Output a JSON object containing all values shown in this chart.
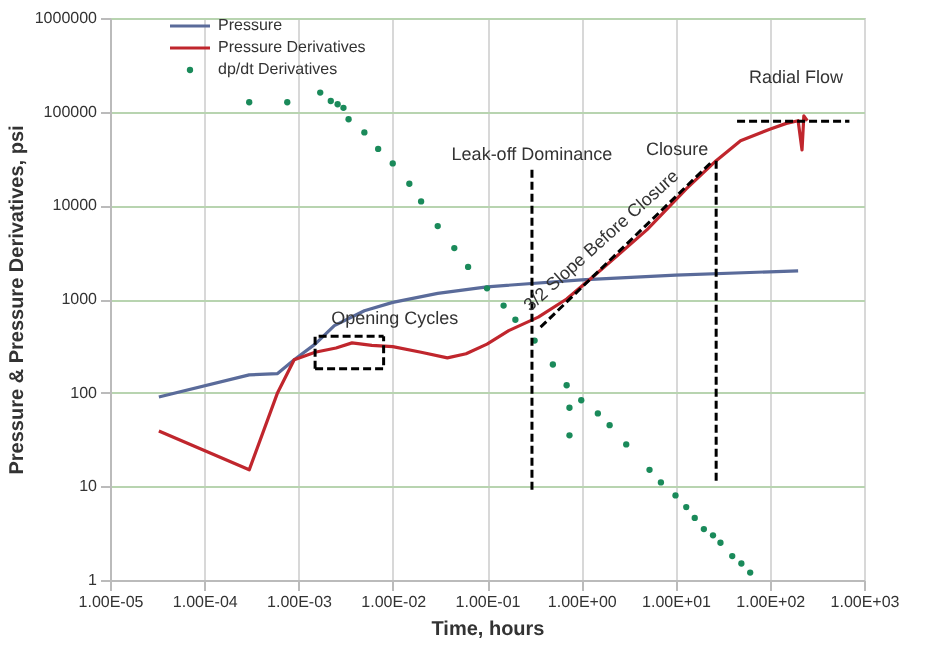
{
  "chart_data": {
    "type": "line",
    "xlabel": "Time, hours",
    "ylabel": "Pressure & Pressure Derivatives, psi",
    "log": "xy",
    "grid": true,
    "legend": "top left",
    "xlim": [
      1e-05,
      1000
    ],
    "ylim": [
      1,
      1000000
    ],
    "xticks": [
      {
        "value": 1e-05,
        "label": "1.00E-05"
      },
      {
        "value": 0.0001,
        "label": "1.00E-04"
      },
      {
        "value": 0.001,
        "label": "1.00E-03"
      },
      {
        "value": 0.01,
        "label": "1.00E-02"
      },
      {
        "value": 0.1,
        "label": "1.00E-01"
      },
      {
        "value": 1,
        "label": "1.00E+00"
      },
      {
        "value": 10,
        "label": "1.00E+01"
      },
      {
        "value": 100,
        "label": "1.00E+02"
      },
      {
        "value": 1000,
        "label": "1.00E+03"
      }
    ],
    "yticks": [
      1,
      10,
      100,
      1000,
      10000,
      100000,
      1000000
    ],
    "series": [
      {
        "name": "Pressure",
        "color": "#5a6b9a",
        "x": [
          3.3e-05,
          0.0003,
          0.0006,
          0.0009,
          0.0015,
          0.0024,
          0.005,
          0.01,
          0.03,
          0.1,
          1,
          10,
          200
        ],
        "values": [
          90,
          155,
          160,
          225,
          330,
          520,
          750,
          920,
          1150,
          1350,
          1600,
          1800,
          2000
        ]
      },
      {
        "name": "Pressure Derivatives",
        "color": "#c0262d",
        "x": [
          3.3e-05,
          0.0003,
          0.0006,
          0.0009,
          0.0015,
          0.0025,
          0.0037,
          0.006,
          0.01,
          0.02,
          0.038,
          0.06,
          0.1,
          0.17,
          0.35,
          0.7,
          1.4,
          5,
          13,
          27,
          49,
          100,
          150,
          200,
          220,
          230,
          250
        ],
        "values": [
          39,
          15,
          100,
          225,
          270,
          300,
          340,
          320,
          310,
          270,
          235,
          260,
          330,
          460,
          640,
          1000,
          1800,
          5500,
          15000,
          30000,
          49000,
          65000,
          75000,
          80000,
          39000,
          90000,
          80000
        ]
      },
      {
        "name": "dp/dt Derivatives",
        "type": "scatter",
        "color": "#1a8a5a",
        "marker": "circle",
        "x": [
          0.0003,
          0.00076,
          0.0017,
          0.0022,
          0.0026,
          0.003,
          0.0034,
          0.005,
          0.007,
          0.01,
          0.015,
          0.02,
          0.03,
          0.045,
          0.063,
          0.1,
          0.15,
          0.2,
          0.32,
          0.5,
          0.7,
          0.75,
          0.75,
          1,
          1.5,
          2,
          3,
          5.3,
          7,
          10,
          13,
          16,
          20,
          25,
          30,
          40,
          50,
          62
        ],
        "values": [
          126000,
          126000,
          160000,
          130000,
          120000,
          110000,
          83000,
          60000,
          40000,
          28000,
          17000,
          11000,
          6000,
          3500,
          2200,
          1300,
          850,
          600,
          360,
          200,
          120,
          69,
          35,
          83,
          60,
          45,
          28,
          15,
          11,
          8,
          6,
          4.6,
          3.5,
          3,
          2.5,
          1.8,
          1.5,
          1.2
        ]
      },
      {
        "color": "#000000",
        "line_style": "dashed",
        "x": [
          0.3,
          0.3
        ],
        "values": [
          24000,
          9
        ]
      },
      {
        "color": "#000000",
        "line_style": "dashed",
        "x": [
          27,
          27
        ],
        "values": [
          30000,
          11
        ]
      },
      {
        "color": "#000000",
        "line_style": "dashed",
        "x": [
          45,
          700
        ],
        "values": [
          79000,
          79000
        ]
      },
      {
        "color": "#000000",
        "line_style": "dashed",
        "x": [
          0.37,
          25
        ],
        "values": [
          500,
          30000
        ]
      },
      {
        "color": "#000000",
        "line_style": "dashed",
        "x": [
          0.0015,
          0.0015,
          0.008
        ],
        "values": [
          180,
          400,
          400
        ]
      },
      {
        "color": "#000000",
        "line_style": "dashed",
        "x": [
          0.0015,
          0.008,
          0.008
        ],
        "values": [
          180,
          180,
          400
        ]
      }
    ],
    "annotations": [
      {
        "text": "Leak-off Dominance",
        "x": 0.3,
        "y": 24000
      },
      {
        "text": "Closure",
        "x": 27,
        "y": 30000
      },
      {
        "text": "Radial Flow",
        "x": 190,
        "y": 79000
      },
      {
        "text": "3/2 Slope Before Closure",
        "x": 3,
        "y": 3820
      },
      {
        "text": "Opening Cycles",
        "x": 0.0048,
        "y": 400
      }
    ]
  }
}
